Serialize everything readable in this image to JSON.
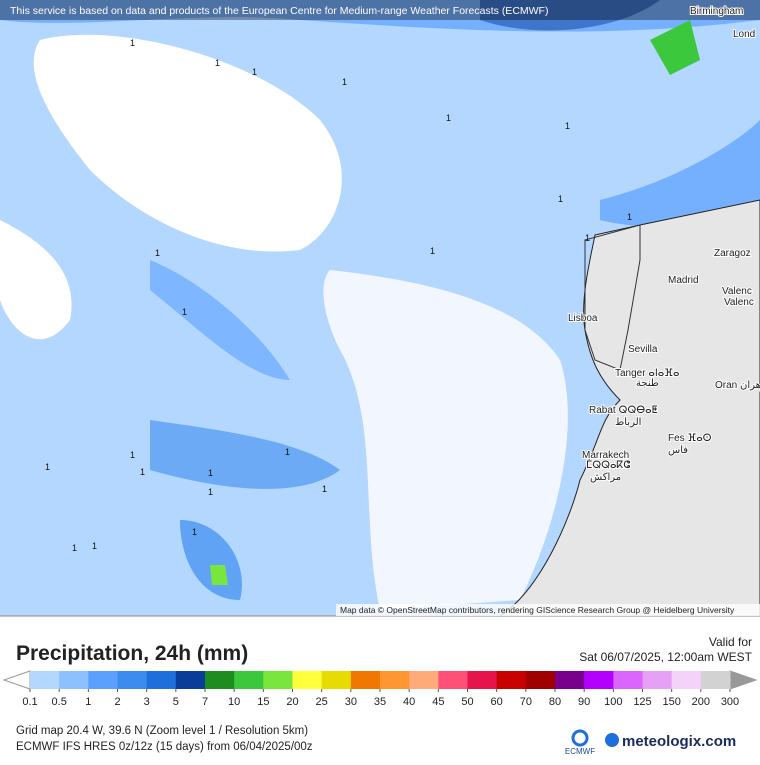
{
  "header": {
    "attribution": "This service is based on data and products of the European Centre for Medium-range Weather Forecasts (ECMWF)"
  },
  "map": {
    "cities": [
      "Birmingham",
      "Lond",
      "Zaragoz",
      "Madrid",
      "Valenc",
      "Valenc",
      "Lisboa",
      "Sevilla",
      "Tanger ⴰⵏⴰⴼⴰ",
      "طنجة",
      "Rabat ⵕⵕⴱⴰⵟ",
      "الرباط",
      "Fes ⴼⴰⵙ",
      "فاس",
      "Oran",
      "وهران",
      "Marrakech",
      "ⵎⵕⵕⴰⴽⵛ",
      "مراكش"
    ],
    "contour_labels": [
      "1",
      "1",
      "1",
      "1",
      "1",
      "1",
      "1",
      "1",
      "1",
      "1",
      "1",
      "1",
      "1",
      "1",
      "1",
      "1",
      "1",
      "1",
      "1",
      "1",
      "1",
      "1"
    ],
    "credits": "Map data © OpenStreetMap contributors, rendering GIScience Research Group @ Heidelberg University"
  },
  "legend": {
    "title": "Precipitation, 24h (mm)",
    "valid_label": "Valid for",
    "valid_time": "Sat 06/07/2025, 12:00am WEST",
    "ticks": [
      0.1,
      0.5,
      1,
      2,
      3,
      5,
      7,
      10,
      15,
      20,
      25,
      30,
      35,
      40,
      45,
      50,
      60,
      70,
      80,
      90,
      100,
      125,
      150,
      200,
      300
    ],
    "colors": [
      "#b4d7ff",
      "#8cc0ff",
      "#5aa0ff",
      "#3c8cf0",
      "#1e6edc",
      "#0a3c9a",
      "#1e8c1e",
      "#3cc83c",
      "#78e63c",
      "#ffff3c",
      "#e6dc00",
      "#f07800",
      "#ff9632",
      "#ffaa78",
      "#ff5078",
      "#e6144b",
      "#c80000",
      "#a00000",
      "#78008c",
      "#b400ff",
      "#dc64ff",
      "#e6a0f5",
      "#f5d2fa",
      "#d2d2d2"
    ]
  },
  "footer": {
    "grid": "Grid map 20.4 W, 39.6 N (Zoom level 1 / Resolution 5km)",
    "model": "ECMWF IFS HRES 0z/12z (15 days) from  06/04/2025/00z",
    "ecmwf": "ECMWF",
    "brand": "meteologix.com"
  }
}
